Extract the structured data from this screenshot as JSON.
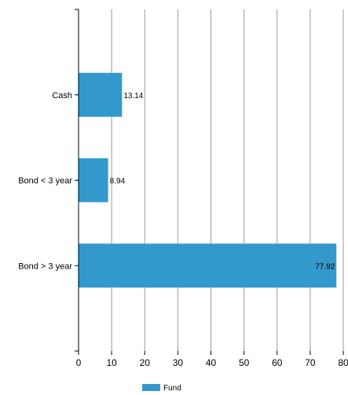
{
  "chart_data": {
    "type": "bar",
    "orientation": "horizontal",
    "categories": [
      "Cash",
      "Bond < 3 year",
      "Bond > 3 year"
    ],
    "series": [
      {
        "name": "Fund",
        "values": [
          13.14,
          8.94,
          77.92
        ],
        "color": "#3399cc"
      }
    ],
    "data_labels": [
      "13.14",
      "8.94",
      "77.92"
    ],
    "xlim": [
      0,
      80
    ],
    "xticks": [
      0,
      10,
      20,
      30,
      40,
      50,
      60,
      70,
      80
    ],
    "xtick_labels": [
      "0",
      "10",
      "20",
      "30",
      "40",
      "50",
      "60",
      "70",
      "80"
    ],
    "grid": "vertical",
    "legend": "bottom-center",
    "legend_label": "Fund"
  }
}
